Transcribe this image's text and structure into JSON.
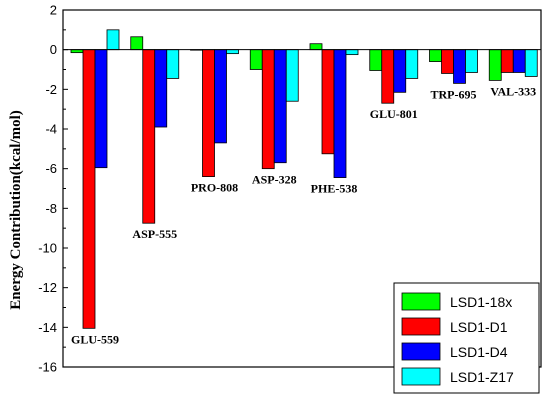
{
  "chart_data": {
    "type": "bar",
    "title": "",
    "xlabel": "",
    "ylabel": "Energy Contribution(kcal/mol)",
    "ylim": [
      -16,
      2
    ],
    "yticks": [
      2,
      0,
      -2,
      -4,
      -6,
      -8,
      -10,
      -12,
      -14,
      -16
    ],
    "grid": false,
    "legend_position": "bottom-right",
    "categories": [
      "GLU-559",
      "ASP-555",
      "PRO-808",
      "ASP-328",
      "PHE-538",
      "GLU-801",
      "TRP-695",
      "VAL-333"
    ],
    "series": [
      {
        "name": "LSD1-18x",
        "color": "#00ff00",
        "values": [
          -0.15,
          0.65,
          0.0,
          -1.0,
          0.3,
          -1.05,
          -0.6,
          -1.55
        ]
      },
      {
        "name": "LSD1-D1",
        "color": "#ff0000",
        "values": [
          -14.05,
          -8.75,
          -6.4,
          -6.0,
          -5.25,
          -2.7,
          -1.2,
          -1.15
        ]
      },
      {
        "name": "LSD1-D4",
        "color": "#0000ff",
        "values": [
          -5.95,
          -3.9,
          -4.7,
          -5.7,
          -6.45,
          -2.15,
          -1.7,
          -1.15
        ]
      },
      {
        "name": "LSD1-Z17",
        "color": "#00ffff",
        "values": [
          1.0,
          -1.45,
          -0.2,
          -2.6,
          -0.25,
          -1.45,
          -1.15,
          -1.35
        ]
      }
    ]
  }
}
